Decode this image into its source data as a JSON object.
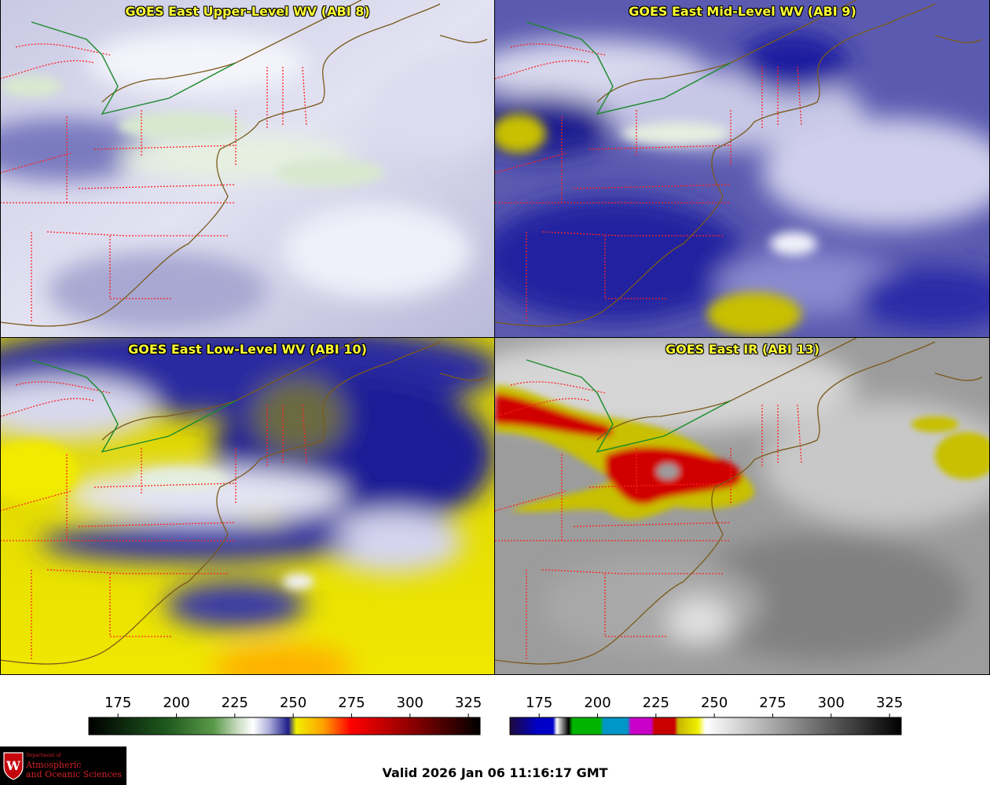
{
  "panels": [
    {
      "title": "GOES East Upper-Level WV (ABI 8)",
      "colorbar": "wv"
    },
    {
      "title": "GOES East Mid-Level WV (ABI 9)",
      "colorbar": "wv"
    },
    {
      "title": "GOES East Low-Level WV (ABI 10)",
      "colorbar": "wv"
    },
    {
      "title": "GOES East IR (ABI 13)",
      "colorbar": "ir"
    }
  ],
  "colorbars": {
    "wv": {
      "ticks": [
        "175",
        "200",
        "225",
        "250",
        "275",
        "300",
        "325"
      ]
    },
    "ir": {
      "ticks": [
        "175",
        "200",
        "225",
        "250",
        "275",
        "300",
        "325"
      ]
    }
  },
  "footer": {
    "valid_time": "Valid 2026 Jan 06 11:16:17 GMT",
    "logo_line1": "Department of",
    "logo_line2": "Atmospheric",
    "logo_line3": "and Oceanic Sciences",
    "logo_emblem": "W"
  },
  "colors": {
    "title": "#ffff33",
    "state_borders": "#ff2020",
    "coastline": "#7a5a1a",
    "canada_border": "#1a8a2a"
  }
}
